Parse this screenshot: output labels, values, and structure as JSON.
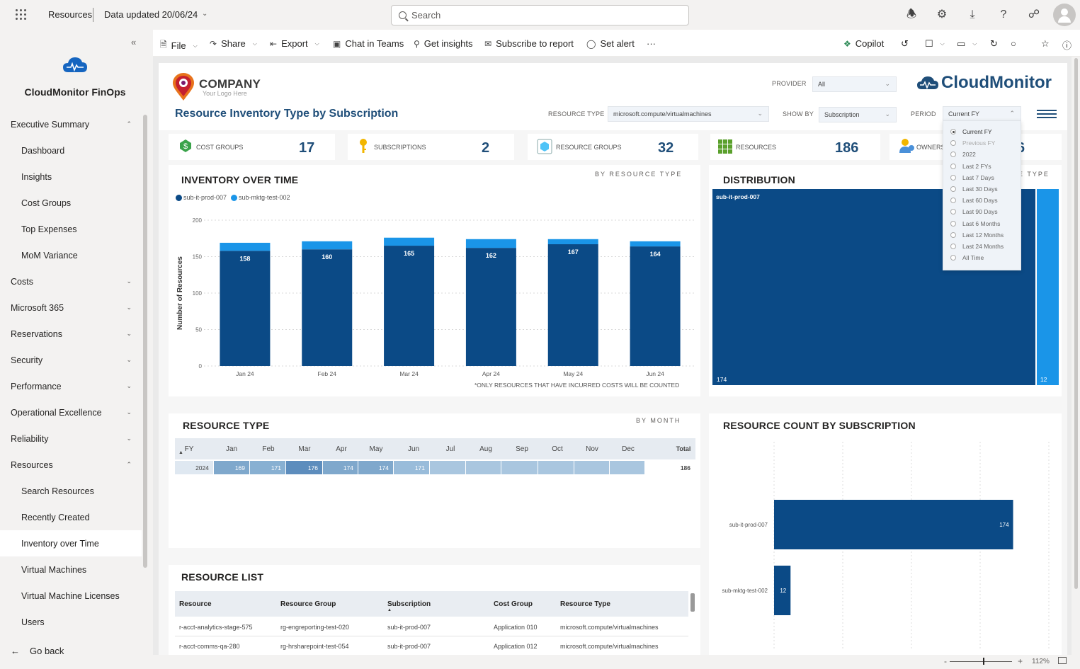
{
  "topbar": {
    "workspace": "Resources",
    "data_updated": "Data updated 20/06/24",
    "search_placeholder": "Search"
  },
  "sidebar": {
    "app_name": "CloudMonitor FinOps",
    "items": [
      {
        "label": "Executive Summary",
        "type": "group",
        "state": "expanded"
      },
      {
        "label": "Dashboard",
        "type": "sub"
      },
      {
        "label": "Insights",
        "type": "sub"
      },
      {
        "label": "Cost Groups",
        "type": "sub"
      },
      {
        "label": "Top Expenses",
        "type": "sub"
      },
      {
        "label": "MoM Variance",
        "type": "sub"
      },
      {
        "label": "Costs",
        "type": "group",
        "state": "collapsed"
      },
      {
        "label": "Microsoft 365",
        "type": "group",
        "state": "collapsed"
      },
      {
        "label": "Reservations",
        "type": "group",
        "state": "collapsed"
      },
      {
        "label": "Security",
        "type": "group",
        "state": "collapsed"
      },
      {
        "label": "Performance",
        "type": "group",
        "state": "collapsed"
      },
      {
        "label": "Operational Excellence",
        "type": "group",
        "state": "collapsed"
      },
      {
        "label": "Reliability",
        "type": "group",
        "state": "collapsed"
      },
      {
        "label": "Resources",
        "type": "group",
        "state": "expanded"
      },
      {
        "label": "Search Resources",
        "type": "sub"
      },
      {
        "label": "Recently Created",
        "type": "sub"
      },
      {
        "label": "Inventory over Time",
        "type": "sub",
        "active": true
      },
      {
        "label": "Virtual Machines",
        "type": "sub"
      },
      {
        "label": "Virtual Machine Licenses",
        "type": "sub"
      },
      {
        "label": "Users",
        "type": "sub"
      }
    ],
    "go_back": "Go back"
  },
  "actionbar": {
    "file": "File",
    "share": "Share",
    "export": "Export",
    "chat": "Chat in Teams",
    "insights": "Get insights",
    "subscribe": "Subscribe to report",
    "alert": "Set alert",
    "more": "···",
    "copilot": "Copilot"
  },
  "report": {
    "company_name": "COMPANY",
    "company_tagline": "Your Logo Here",
    "title": "Resource Inventory Type by Subscription",
    "brand": "CloudMonitor",
    "filters": {
      "provider_label": "PROVIDER",
      "provider_value": "All",
      "resource_type_label": "RESOURCE TYPE",
      "resource_type_value": "microsoft.compute/virtualmachines",
      "show_by_label": "SHOW BY",
      "show_by_value": "Subscription",
      "period_label": "PERIOD",
      "period_value": "Current FY",
      "period_options": [
        {
          "label": "Current FY",
          "selected": true
        },
        {
          "label": "Previous FY",
          "dim": true
        },
        {
          "label": "2022"
        },
        {
          "label": "Last 2 FYs"
        },
        {
          "label": "Last 7 Days"
        },
        {
          "label": "Last 30 Days"
        },
        {
          "label": "Last 60 Days"
        },
        {
          "label": "Last 90 Days"
        },
        {
          "label": "Last 6 Months"
        },
        {
          "label": "Last 12 Months"
        },
        {
          "label": "Last 24 Months"
        },
        {
          "label": "All Time"
        }
      ]
    },
    "kpis": {
      "cost_groups_label": "COST GROUPS",
      "cost_groups_value": "17",
      "subscriptions_label": "SUBSCRIPTIONS",
      "subscriptions_value": "2",
      "resource_groups_label": "RESOURCE GROUPS",
      "resource_groups_value": "32",
      "resources_label": "RESOURCES",
      "resources_value": "186",
      "owners_label": "OWNERS",
      "owners_value": "6"
    },
    "inventory": {
      "title": "INVENTORY OVER TIME",
      "subtitle": "BY RESOURCE TYPE",
      "legend": [
        "sub-it-prod-007",
        "sub-mktg-test-002"
      ],
      "ylabel": "Number of Resources",
      "footnote": "*ONLY RESOURCES THAT HAVE INCURRED COSTS WILL BE COUNTED"
    },
    "distribution": {
      "title": "DISTRIBUTION",
      "subtitle_visible": "E TYPE",
      "main_label": "sub-it-prod-007",
      "main_value": "174",
      "small_value": "12",
      "colors": [
        "#0b4a86",
        "#1a95e8"
      ]
    },
    "resource_type": {
      "title": "RESOURCE TYPE",
      "subtitle": "BY MONTH",
      "headers": [
        "FY",
        "Jan",
        "Feb",
        "Mar",
        "Apr",
        "May",
        "Jun",
        "Jul",
        "Aug",
        "Sep",
        "Oct",
        "Nov",
        "Dec",
        "Total"
      ],
      "row": [
        "2024",
        "169",
        "171",
        "176",
        "174",
        "174",
        "171",
        "",
        "",
        "",
        "",
        "",
        "",
        "186"
      ]
    },
    "resource_count": {
      "title": "RESOURCE COUNT BY SUBSCRIPTION"
    },
    "resource_list": {
      "title": "RESOURCE LIST",
      "headers": [
        "Resource",
        "Resource Group",
        "Subscription",
        "Cost Group",
        "Resource Type"
      ],
      "rows": [
        [
          "r-acct-analytics-stage-575",
          "rg-engreporting-test-020",
          "sub-it-prod-007",
          "Application 010",
          "microsoft.compute/virtualmachines"
        ],
        [
          "r-acct-comms-qa-280",
          "rg-hrsharepoint-test-054",
          "sub-it-prod-007",
          "Application 012",
          "microsoft.compute/virtualmachines"
        ]
      ]
    }
  },
  "statusbar": {
    "zoom": "112%"
  },
  "chart_data": [
    {
      "type": "bar",
      "title": "INVENTORY OVER TIME",
      "ylabel": "Number of Resources",
      "categories": [
        "Jan 24",
        "Feb 24",
        "Mar 24",
        "Apr 24",
        "May 24",
        "Jun 24"
      ],
      "series": [
        {
          "name": "sub-it-prod-007",
          "values": [
            158,
            160,
            165,
            162,
            167,
            164
          ],
          "color": "#0b4a86"
        },
        {
          "name": "sub-mktg-test-002",
          "values": [
            11,
            11,
            11,
            12,
            7,
            7
          ],
          "color": "#1a95e8"
        }
      ],
      "stacked": true,
      "ylim": [
        0,
        200
      ],
      "yticks": [
        0,
        50,
        100,
        150,
        200
      ],
      "grid": true,
      "legend": "top-left"
    },
    {
      "type": "bar",
      "orientation": "horizontal",
      "title": "RESOURCE COUNT BY SUBSCRIPTION",
      "categories": [
        "sub-it-prod-007",
        "sub-mktg-test-002"
      ],
      "values": [
        174,
        12
      ],
      "xlim": [
        0,
        200
      ],
      "color": "#0b4a86"
    }
  ]
}
